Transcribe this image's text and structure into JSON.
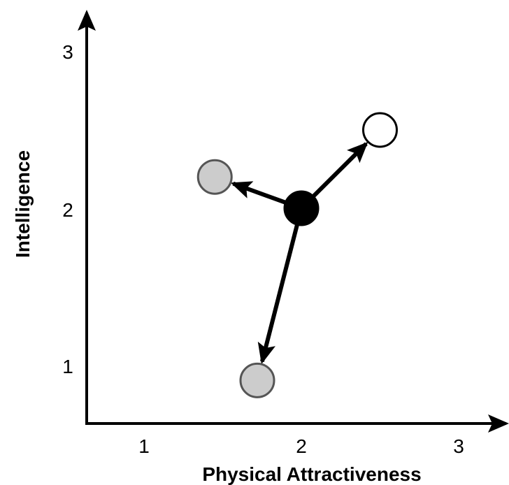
{
  "axes": {
    "x_label": "Physical Attractiveness",
    "y_label": "Intelligence",
    "x_ticks": [
      "1",
      "2",
      "3"
    ],
    "y_ticks": [
      "1",
      "2",
      "3"
    ],
    "x_tick_values": [
      1,
      2,
      3
    ],
    "y_tick_values": [
      1,
      2,
      3
    ]
  },
  "points": [
    {
      "id": "center",
      "x": 2.0,
      "y": 2.0,
      "fill": "#000000"
    },
    {
      "id": "upper-right",
      "x": 2.5,
      "y": 2.5,
      "fill": "#ffffff"
    },
    {
      "id": "left",
      "x": 1.45,
      "y": 2.2,
      "fill": "#cccccc"
    },
    {
      "id": "bottom",
      "x": 1.72,
      "y": 0.9,
      "fill": "#cccccc"
    }
  ],
  "arrows": [
    {
      "from": "center",
      "to": "upper-right"
    },
    {
      "from": "center",
      "to": "left"
    },
    {
      "from": "center",
      "to": "bottom"
    }
  ]
}
